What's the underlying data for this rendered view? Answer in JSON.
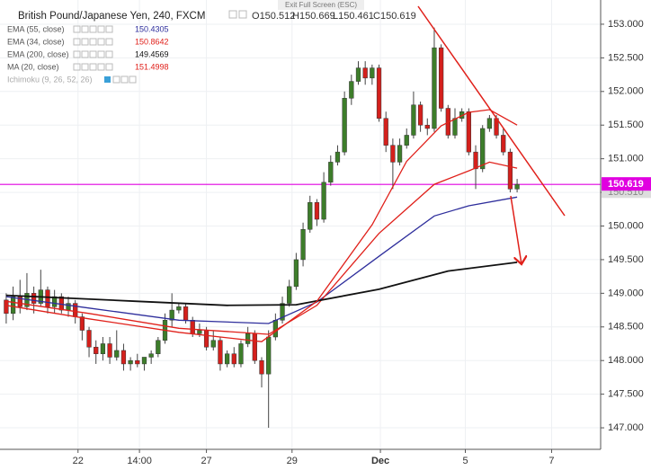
{
  "chart_data": {
    "type": "candlestick",
    "title": "British Pound/Japanese Yen, 240, FXCM",
    "screen_hint": "Exit Full Screen (ESC)",
    "ohlc_header": [
      {
        "label": "O",
        "value": 150.512
      },
      {
        "label": "H",
        "value": 150.669
      },
      {
        "label": "L",
        "value": 150.461
      },
      {
        "label": "C",
        "value": 150.619
      }
    ],
    "up_color": "#3d7d2a",
    "down_color": "#d4201c",
    "open": [
      148.9,
      148.7,
      148.95,
      148.8,
      149.0,
      148.85,
      149.05,
      148.8,
      148.95,
      148.75,
      148.85,
      148.65,
      148.45,
      148.2,
      148.1,
      148.25,
      148.05,
      148.15,
      147.95,
      148.0,
      147.95,
      148.05,
      148.1,
      148.3,
      148.6,
      148.75,
      148.8,
      148.6,
      148.4,
      148.45,
      148.2,
      148.3,
      147.95,
      148.1,
      147.95,
      148.25,
      148.4,
      148.0,
      147.8,
      148.35,
      148.6,
      148.85,
      149.1,
      149.5,
      149.95,
      150.35,
      150.1,
      150.65,
      150.95,
      151.1,
      151.9,
      152.15,
      152.35,
      152.2,
      152.35,
      151.6,
      151.2,
      150.95,
      151.2,
      151.35,
      151.8,
      151.5,
      151.45,
      152.65,
      151.75,
      151.35,
      151.6,
      151.7,
      151.1,
      150.85,
      151.45,
      151.6,
      151.35,
      151.1,
      150.55
    ],
    "high": [
      149.0,
      149.1,
      149.2,
      149.3,
      149.1,
      149.35,
      149.1,
      149.05,
      149.0,
      148.95,
      148.9,
      148.7,
      148.5,
      148.3,
      148.35,
      148.35,
      148.45,
      148.25,
      148.05,
      148.1,
      148.05,
      148.15,
      148.35,
      148.7,
      149.0,
      148.85,
      148.85,
      148.65,
      148.55,
      148.5,
      148.45,
      148.35,
      148.15,
      148.2,
      148.3,
      148.5,
      148.45,
      148.05,
      148.45,
      148.7,
      148.95,
      149.2,
      149.6,
      150.05,
      150.45,
      150.4,
      150.8,
      151.05,
      151.2,
      152.0,
      152.25,
      152.45,
      152.45,
      152.4,
      152.4,
      151.7,
      151.3,
      151.3,
      151.45,
      152.0,
      151.85,
      151.6,
      152.95,
      152.7,
      151.8,
      151.75,
      151.75,
      151.75,
      151.2,
      151.5,
      151.65,
      151.65,
      151.45,
      151.15,
      150.7
    ],
    "low": [
      148.55,
      148.6,
      148.7,
      148.75,
      148.7,
      148.8,
      148.7,
      148.7,
      148.7,
      148.65,
      148.55,
      148.3,
      148.05,
      147.95,
      148.0,
      147.95,
      148.0,
      147.85,
      147.85,
      147.9,
      147.85,
      147.95,
      148.05,
      148.25,
      148.5,
      148.7,
      148.55,
      148.35,
      148.35,
      148.15,
      148.15,
      147.85,
      147.9,
      147.9,
      147.9,
      148.2,
      147.95,
      147.6,
      147.0,
      148.3,
      148.55,
      148.8,
      149.05,
      149.4,
      149.9,
      150.0,
      150.05,
      150.6,
      150.9,
      151.05,
      151.8,
      152.1,
      152.1,
      152.1,
      151.55,
      151.1,
      150.55,
      150.9,
      151.15,
      151.3,
      151.4,
      151.35,
      151.4,
      151.7,
      151.3,
      151.3,
      151.55,
      151.05,
      150.55,
      150.8,
      151.4,
      151.3,
      151.05,
      150.5,
      150.5
    ],
    "close": [
      148.7,
      148.95,
      148.8,
      149.0,
      148.85,
      149.05,
      148.8,
      148.95,
      148.75,
      148.85,
      148.65,
      148.45,
      148.2,
      148.1,
      148.25,
      148.05,
      148.15,
      147.95,
      148.0,
      147.95,
      148.05,
      148.1,
      148.3,
      148.6,
      148.75,
      148.8,
      148.6,
      148.4,
      148.45,
      148.2,
      148.3,
      147.95,
      148.1,
      147.95,
      148.25,
      148.4,
      148.0,
      147.8,
      148.35,
      148.6,
      148.85,
      149.1,
      149.5,
      149.95,
      150.35,
      150.1,
      150.65,
      150.95,
      151.1,
      151.9,
      152.15,
      152.35,
      152.2,
      152.35,
      151.6,
      151.2,
      150.95,
      151.2,
      151.35,
      151.8,
      151.5,
      151.45,
      152.65,
      151.75,
      151.35,
      151.6,
      151.7,
      151.1,
      150.85,
      151.45,
      151.6,
      151.35,
      151.1,
      150.55,
      150.62
    ],
    "series": [
      {
        "name": "EMA (55, close)",
        "color": "#2e2e9c",
        "last_value": 150.4305,
        "x": [
          0,
          12,
          25,
          38,
          45,
          54,
          62,
          67,
          74
        ],
        "values": [
          148.95,
          148.78,
          148.6,
          148.55,
          148.87,
          149.55,
          150.15,
          150.3,
          150.43
        ]
      },
      {
        "name": "EMA (34, close)",
        "color": "#e0201a",
        "last_value": 150.8642,
        "x": [
          0,
          12,
          25,
          38,
          45,
          54,
          62,
          67,
          70,
          74
        ],
        "values": [
          148.88,
          148.7,
          148.48,
          148.39,
          148.82,
          149.89,
          150.62,
          150.82,
          150.95,
          150.86
        ]
      },
      {
        "name": "EMA (200, close)",
        "color": "#111111",
        "last_value": 149.4569,
        "x": [
          0,
          19,
          32,
          42,
          54,
          64,
          74
        ],
        "values": [
          148.97,
          148.88,
          148.82,
          148.83,
          149.06,
          149.33,
          149.46
        ]
      },
      {
        "name": "MA (20, close)",
        "color": "#e0201a",
        "last_value": 151.4998,
        "x": [
          0,
          12,
          25,
          37,
          45,
          53,
          58,
          63,
          67,
          70,
          74
        ],
        "values": [
          148.82,
          148.62,
          148.42,
          148.28,
          148.88,
          150.02,
          150.96,
          151.49,
          151.69,
          151.73,
          151.5
        ]
      }
    ],
    "hidden_indicators": [
      "Ichimoku (9, 26, 52, 26)"
    ],
    "price_line": {
      "value": 150.619,
      "label": "150.619",
      "color": "#e000e0"
    },
    "price_marker_2": {
      "value": 150.51,
      "label": "150.510"
    },
    "xlim": [
      -0.9,
      86.1
    ],
    "ylim": [
      146.68,
      153.36
    ],
    "xticks": [
      {
        "value": 10.4,
        "label": "22"
      },
      {
        "value": 19.3,
        "label": "14:00"
      },
      {
        "value": 29,
        "label": "27"
      },
      {
        "value": 41.4,
        "label": "29"
      },
      {
        "value": 54.2,
        "label": "Dec"
      },
      {
        "value": 66.5,
        "label": "5"
      },
      {
        "value": 79,
        "label": "7"
      }
    ],
    "yticks": [
      {
        "value": 147,
        "label": "147.000"
      },
      {
        "value": 147.5,
        "label": "147.500"
      },
      {
        "value": 148,
        "label": "148.000"
      },
      {
        "value": 148.5,
        "label": "148.500"
      },
      {
        "value": 149,
        "label": "149.000"
      },
      {
        "value": 149.5,
        "label": "149.500"
      },
      {
        "value": 150,
        "label": "150.000"
      },
      {
        "value": 150.5,
        "label": "150.500"
      },
      {
        "value": 151,
        "label": "151.000"
      },
      {
        "value": 151.5,
        "label": "151.500"
      },
      {
        "value": 152,
        "label": "152.000"
      },
      {
        "value": 152.5,
        "label": "152.500"
      },
      {
        "value": 153,
        "label": "153.000"
      }
    ],
    "grid": true
  }
}
